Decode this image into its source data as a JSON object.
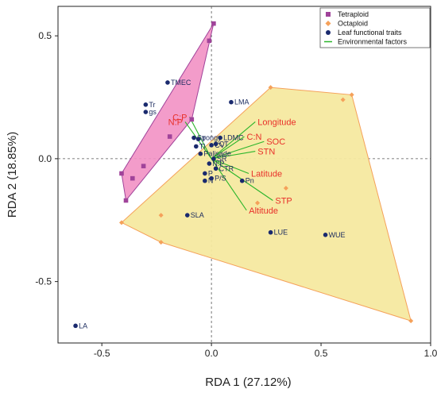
{
  "chart_data": {
    "type": "scatter",
    "xlabel": "RDA 1 (27.12%)",
    "ylabel": "RDA 2 (18.85%)",
    "xlim": [
      -0.7,
      1.0
    ],
    "ylim": [
      -0.75,
      0.62
    ],
    "xticks": [
      -0.5,
      0.0,
      0.5,
      1.0
    ],
    "xtick_labels": [
      "-0.5",
      "0.0",
      "0.5",
      "1.0"
    ],
    "yticks": [
      -0.5,
      0.0,
      0.5
    ],
    "ytick_labels": [
      "-0.5",
      "0.0",
      "0.5"
    ],
    "grid": false,
    "legend_position": "top-right",
    "legend": [
      {
        "label": "Tetraploid",
        "marker": "square",
        "color": "#a0439a"
      },
      {
        "label": "Octaploid",
        "marker": "diamond",
        "color": "#f5a15a"
      },
      {
        "label": "Leaf functional traits",
        "marker": "circle",
        "color": "#1a2a6e"
      },
      {
        "label": "Environmental factors",
        "marker": "line",
        "color": "#2bb52b"
      }
    ],
    "colors": {
      "tetraploid_fill": "#f291c4",
      "tetraploid_edge": "#a0439a",
      "octaploid_fill": "#f5e9a0",
      "octaploid_edge": "#f5a15a",
      "trait": "#1a2a6e",
      "env_arrow": "#2bb52b",
      "env_label": "#e8302a"
    },
    "tetraploid_points": [
      {
        "x": 0.01,
        "y": 0.55
      },
      {
        "x": -0.01,
        "y": 0.48
      },
      {
        "x": -0.09,
        "y": 0.16
      },
      {
        "x": -0.19,
        "y": 0.09
      },
      {
        "x": -0.31,
        "y": -0.03
      },
      {
        "x": -0.36,
        "y": -0.08
      },
      {
        "x": -0.41,
        "y": -0.06
      },
      {
        "x": -0.39,
        "y": -0.17
      }
    ],
    "octaploid_points": [
      {
        "x": 0.27,
        "y": 0.29
      },
      {
        "x": 0.64,
        "y": 0.26
      },
      {
        "x": 0.6,
        "y": 0.24
      },
      {
        "x": 0.91,
        "y": -0.66
      },
      {
        "x": 0.34,
        "y": -0.12
      },
      {
        "x": 0.21,
        "y": -0.18
      },
      {
        "x": -0.23,
        "y": -0.34
      },
      {
        "x": -0.41,
        "y": -0.26
      },
      {
        "x": -0.23,
        "y": -0.23
      }
    ],
    "traits": [
      {
        "label": "LA",
        "x": -0.62,
        "y": -0.68
      },
      {
        "label": "WUE",
        "x": 0.52,
        "y": -0.31
      },
      {
        "label": "LUE",
        "x": 0.27,
        "y": -0.3
      },
      {
        "label": "SLA",
        "x": -0.11,
        "y": -0.23
      },
      {
        "label": "LMA",
        "x": 0.09,
        "y": 0.23
      },
      {
        "label": "TMEC",
        "x": -0.2,
        "y": 0.31
      },
      {
        "label": "Tr",
        "x": -0.3,
        "y": 0.22
      },
      {
        "label": "gs",
        "x": -0.3,
        "y": 0.19
      },
      {
        "label": "Spongy",
        "x": -0.08,
        "y": 0.085
      },
      {
        "label": "T",
        "x": -0.06,
        "y": 0.08
      },
      {
        "label": "Tl",
        "x": -0.07,
        "y": 0.05
      },
      {
        "label": "LDMC",
        "x": 0.04,
        "y": 0.085
      },
      {
        "label": "Pn",
        "x": 0.14,
        "y": -0.09
      },
      {
        "label": "Palisade",
        "x": -0.05,
        "y": 0.02
      },
      {
        "label": "N:P",
        "x": -0.01,
        "y": -0.02
      },
      {
        "label": "P",
        "x": -0.03,
        "y": -0.06
      },
      {
        "label": "N",
        "x": -0.03,
        "y": -0.09
      },
      {
        "label": "P/S",
        "x": 0.0,
        "y": -0.08
      },
      {
        "label": "CTR",
        "x": 0.02,
        "y": -0.04
      },
      {
        "label": "SR",
        "x": 0.01,
        "y": 0.0
      },
      {
        "label": "CT",
        "x": 0.02,
        "y": 0.06
      },
      {
        "label": "CV",
        "x": 0.0,
        "y": 0.055
      }
    ],
    "env_factors": [
      {
        "label": "Longitude",
        "x": 0.2,
        "y": 0.15
      },
      {
        "label": "C:N",
        "x": 0.15,
        "y": 0.09
      },
      {
        "label": "SOC",
        "x": 0.24,
        "y": 0.07
      },
      {
        "label": "STN",
        "x": 0.2,
        "y": 0.03
      },
      {
        "label": "Latitude",
        "x": 0.17,
        "y": -0.06
      },
      {
        "label": "STP",
        "x": 0.28,
        "y": -0.17
      },
      {
        "label": "Altitude",
        "x": 0.16,
        "y": -0.21
      },
      {
        "label": "C:P",
        "x": -0.1,
        "y": 0.17
      },
      {
        "label": "N:P",
        "x": -0.12,
        "y": 0.15
      }
    ]
  }
}
